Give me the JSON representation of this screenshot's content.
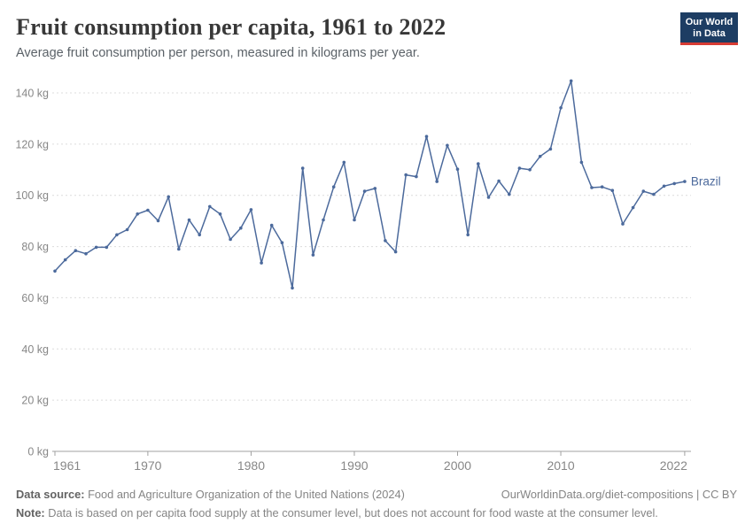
{
  "header": {
    "title": "Fruit consumption per capita, 1961 to 2022",
    "subtitle": "Average fruit consumption per person, measured in kilograms per year.",
    "logo": {
      "line1": "Our World",
      "line2": "in Data"
    }
  },
  "chart_data": {
    "type": "line",
    "title": "Fruit consumption per capita, 1961 to 2022",
    "xlabel": "",
    "ylabel": "kilograms per year",
    "xlim": [
      1961,
      2022
    ],
    "ylim": [
      0,
      150
    ],
    "x_ticks": [
      1961,
      1970,
      1980,
      1990,
      2000,
      2010,
      2022
    ],
    "y_ticks": [
      0,
      20,
      40,
      60,
      80,
      100,
      120,
      140
    ],
    "y_tick_suffix": " kg",
    "grid": "horizontal-dashed",
    "legend_position": "end-of-line-label",
    "end_label": "Brazil",
    "series": [
      {
        "name": "Brazil",
        "color": "#4c6a9c",
        "x": [
          1961,
          1962,
          1963,
          1964,
          1965,
          1966,
          1967,
          1968,
          1969,
          1970,
          1971,
          1972,
          1973,
          1974,
          1975,
          1976,
          1977,
          1978,
          1979,
          1980,
          1981,
          1982,
          1983,
          1984,
          1985,
          1986,
          1987,
          1988,
          1989,
          1990,
          1991,
          1992,
          1993,
          1994,
          1995,
          1996,
          1997,
          1998,
          1999,
          2000,
          2001,
          2002,
          2003,
          2004,
          2005,
          2006,
          2007,
          2008,
          2009,
          2010,
          2011,
          2012,
          2013,
          2014,
          2015,
          2016,
          2017,
          2018,
          2019,
          2020,
          2021,
          2022
        ],
        "values": [
          70.4,
          74.8,
          78.4,
          77.2,
          79.7,
          79.7,
          84.6,
          86.6,
          92.7,
          94.2,
          90.1,
          99.4,
          79.0,
          90.4,
          84.6,
          95.6,
          92.7,
          82.8,
          87.2,
          94.4,
          73.6,
          88.3,
          81.5,
          63.8,
          110.6,
          76.7,
          90.4,
          103.3,
          112.9,
          90.4,
          101.6,
          102.7,
          82.3,
          77.9,
          108.0,
          107.3,
          123.0,
          105.4,
          119.5,
          110.2,
          84.6,
          112.3,
          99.2,
          105.6,
          100.4,
          110.6,
          110.0,
          115.2,
          118.1,
          134.2,
          144.7,
          112.9,
          103.0,
          103.3,
          101.9,
          88.8,
          95.2,
          101.6,
          100.4,
          103.6,
          104.6,
          105.4
        ]
      }
    ]
  },
  "footer": {
    "datasource_label": "Data source:",
    "datasource_text": "Food and Agriculture Organization of the United Nations (2024)",
    "link_text": "OurWorldinData.org/diet-compositions | CC BY",
    "note_label": "Note:",
    "note_text": "Data is based on per capita food supply at the consumer level, but does not account for food waste at the consumer level."
  },
  "colors": {
    "line": "#4c6a9c",
    "logo_bg": "#1d3d63",
    "logo_accent": "#d73c34",
    "grid": "#dcdcdc",
    "axis": "#a0a0a0",
    "tick_text": "#878787",
    "title_text": "#383838",
    "subtitle_text": "#5b6268"
  }
}
